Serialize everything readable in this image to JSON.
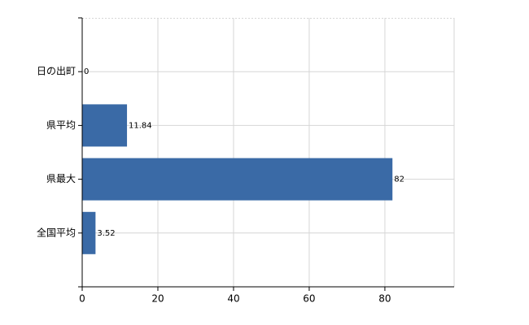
{
  "chart_data": {
    "type": "hbar",
    "categories": [
      "日の出町",
      "県平均",
      "県最大",
      "全国平均"
    ],
    "values": [
      0,
      11.84,
      82,
      3.52
    ],
    "color": "#3a6aa6",
    "xlim": [
      0,
      98.3
    ],
    "xticks": [
      0,
      20,
      40,
      60,
      80
    ],
    "grid": true
  }
}
